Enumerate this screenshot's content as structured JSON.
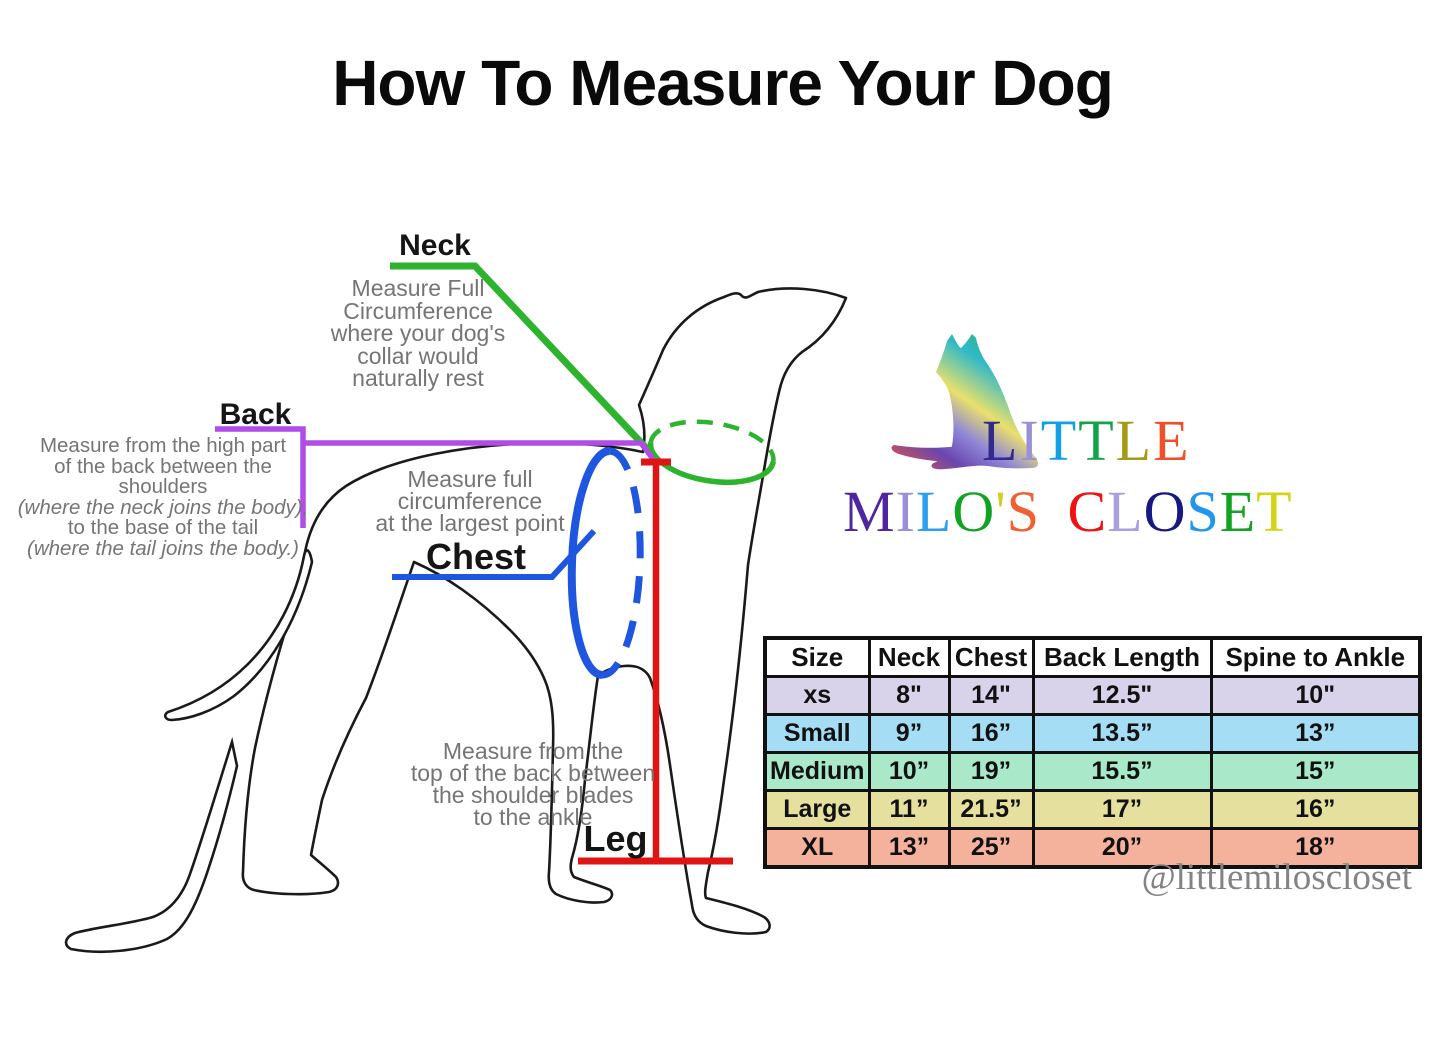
{
  "title": "How To Measure Your Dog",
  "colors": {
    "neck_line": "#2db32d",
    "back_line": "#b14ce6",
    "chest_line": "#1e56e0",
    "leg_line": "#e01414",
    "outline": "#1a1a1a",
    "text_gray": "#757575"
  },
  "annotations": {
    "neck": {
      "label": "Neck",
      "lines": [
        "Measure Full",
        "Circumference",
        "where your dog's",
        "collar would",
        "naturally rest"
      ]
    },
    "back": {
      "label": "Back",
      "lines": [
        "Measure from the high part",
        "of the back between the",
        "shoulders",
        "(where the neck joins the body),",
        "to the base of the tail",
        "(where the tail joins the body.)"
      ]
    },
    "chest": {
      "label": "Chest",
      "lines": [
        "Measure full",
        "circumference",
        "at the largest point"
      ]
    },
    "leg": {
      "label": "Leg",
      "lines": [
        "Measure from the",
        "top of the back between",
        "the shoulder blades",
        "to the ankle"
      ]
    }
  },
  "logo": {
    "line1": [
      {
        "ch": "L",
        "color": "#332a8a"
      },
      {
        "ch": "I",
        "color": "#9a90d8"
      },
      {
        "ch": "T",
        "color": "#129fe8"
      },
      {
        "ch": "T",
        "color": "#12a348"
      },
      {
        "ch": "L",
        "color": "#a39a18"
      },
      {
        "ch": "E",
        "color": "#f05028"
      }
    ],
    "line2": [
      {
        "ch": "M",
        "color": "#5026a0"
      },
      {
        "ch": "I",
        "color": "#9a90d8"
      },
      {
        "ch": "L",
        "color": "#2e9ff0"
      },
      {
        "ch": "O",
        "color": "#12a322"
      },
      {
        "ch": "'",
        "color": "#d8cc20"
      },
      {
        "ch": "S",
        "color": "#f06030"
      },
      {
        "ch": " ",
        "color": "#000000"
      },
      {
        "ch": "C",
        "color": "#ee1212"
      },
      {
        "ch": "L",
        "color": "#ab9fe0"
      },
      {
        "ch": "O",
        "color": "#181880"
      },
      {
        "ch": "S",
        "color": "#2196f0"
      },
      {
        "ch": "E",
        "color": "#12a322"
      },
      {
        "ch": "T",
        "color": "#d6d314"
      }
    ]
  },
  "size_table": {
    "headers": [
      "Size",
      "Neck",
      "Chest",
      "Back Length",
      "Spine to Ankle"
    ],
    "rows": [
      {
        "size": "xs",
        "neck": "8\"",
        "chest": "14\"",
        "back_length": "12.5\"",
        "spine_to_ankle": "10\"",
        "bg": "#d8d2ea"
      },
      {
        "size": "Small",
        "neck": "9”",
        "chest": "16”",
        "back_length": "13.5”",
        "spine_to_ankle": "13”",
        "bg": "#a5ddf5"
      },
      {
        "size": "Medium",
        "neck": "10”",
        "chest": "19”",
        "back_length": "15.5”",
        "spine_to_ankle": "15”",
        "bg": "#a9e8c9"
      },
      {
        "size": "Large",
        "neck": "11”",
        "chest": "21.5”",
        "back_length": "17”",
        "spine_to_ankle": "16”",
        "bg": "#e6e09f"
      },
      {
        "size": "XL",
        "neck": "13”",
        "chest": "25”",
        "back_length": "20”",
        "spine_to_ankle": "18”",
        "bg": "#f4b29c"
      }
    ]
  },
  "handle": "@littlemiloscloset"
}
